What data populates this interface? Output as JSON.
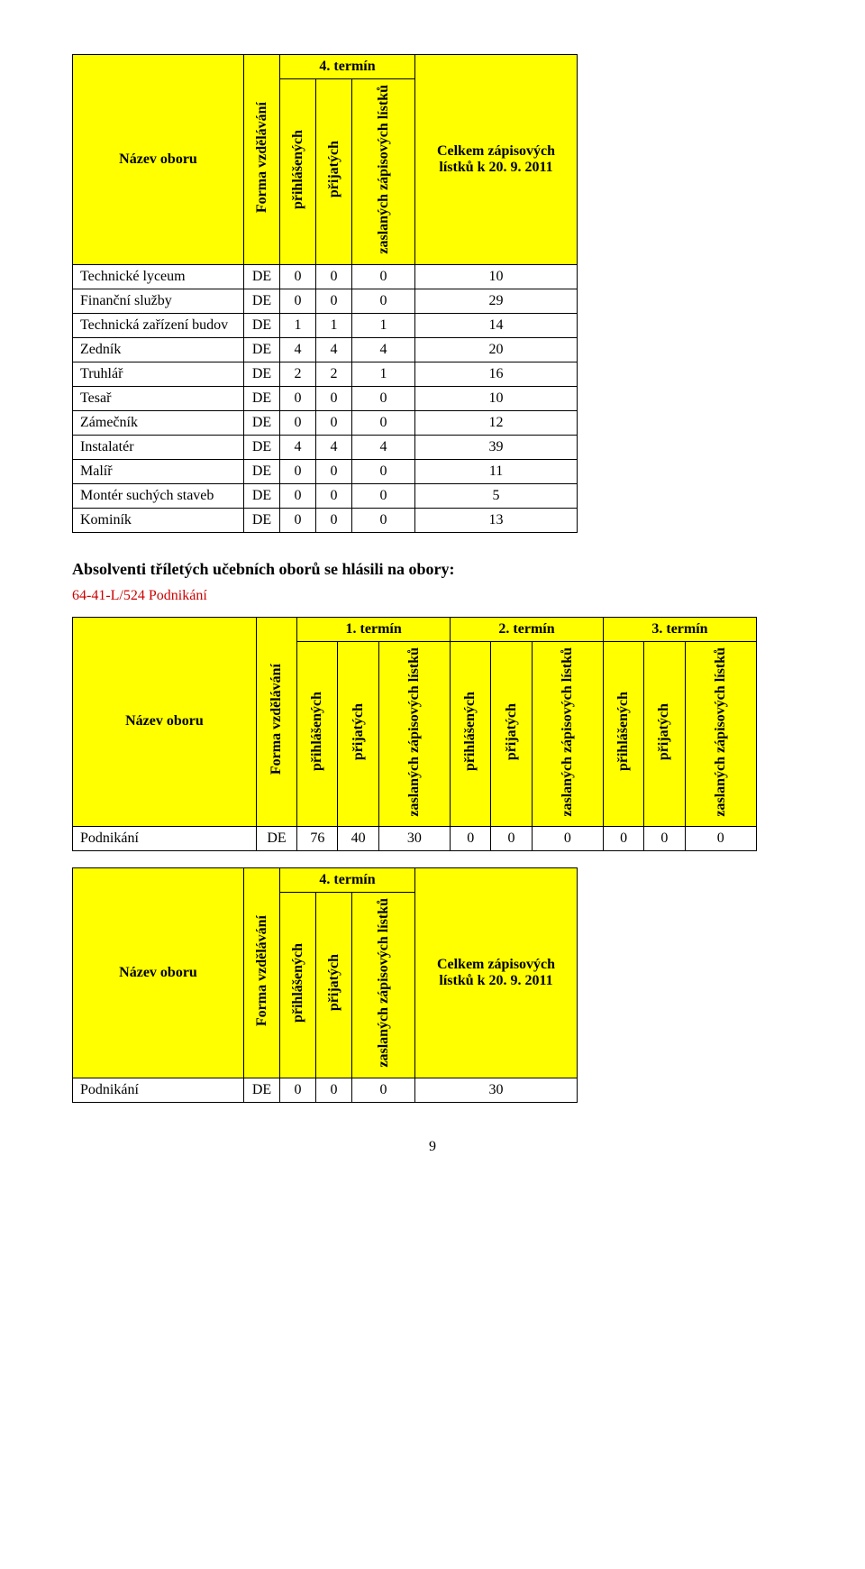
{
  "table1": {
    "col1_header": "Název oboru",
    "forma": "Forma vzdělávání",
    "termin4": "4. termín",
    "prihlasenych": "přihlášených",
    "prijatych": "přijatých",
    "zaslanych": "zaslaných zápisových lístků",
    "celkem": "Celkem zápisových lístků k 20. 9. 2011",
    "rows": [
      {
        "name": "Technické lyceum",
        "forma": "DE",
        "v1": "0",
        "v2": "0",
        "v3": "0",
        "total": "10"
      },
      {
        "name": "Finanční služby",
        "forma": "DE",
        "v1": "0",
        "v2": "0",
        "v3": "0",
        "total": "29"
      },
      {
        "name": "Technická zařízení budov",
        "forma": "DE",
        "v1": "1",
        "v2": "1",
        "v3": "1",
        "total": "14"
      },
      {
        "name": "Zedník",
        "forma": "DE",
        "v1": "4",
        "v2": "4",
        "v3": "4",
        "total": "20"
      },
      {
        "name": "Truhlář",
        "forma": "DE",
        "v1": "2",
        "v2": "2",
        "v3": "1",
        "total": "16"
      },
      {
        "name": "Tesař",
        "forma": "DE",
        "v1": "0",
        "v2": "0",
        "v3": "0",
        "total": "10"
      },
      {
        "name": "Zámečník",
        "forma": "DE",
        "v1": "0",
        "v2": "0",
        "v3": "0",
        "total": "12"
      },
      {
        "name": "Instalatér",
        "forma": "DE",
        "v1": "4",
        "v2": "4",
        "v3": "4",
        "total": "39"
      },
      {
        "name": "Malíř",
        "forma": "DE",
        "v1": "0",
        "v2": "0",
        "v3": "0",
        "total": "11"
      },
      {
        "name": "Montér suchých staveb",
        "forma": "DE",
        "v1": "0",
        "v2": "0",
        "v3": "0",
        "total": "5"
      },
      {
        "name": "Kominík",
        "forma": "DE",
        "v1": "0",
        "v2": "0",
        "v3": "0",
        "total": "13"
      }
    ]
  },
  "section_heading": "Absolventi tříletých učebních oborů se hlásili na obory:",
  "course_code": "64-41-L/524   Podnikání",
  "table2": {
    "col1_header": "Název oboru",
    "forma": "Forma vzdělávání",
    "termin1": "1. termín",
    "termin2": "2. termín",
    "termin3": "3. termín",
    "prihlasenych": "přihlášených",
    "prijatych": "přijatých",
    "zaslanych": "zaslaných zápisových lístků",
    "rows": [
      {
        "name": "Podnikání",
        "forma": "DE",
        "t1a": "76",
        "t1b": "40",
        "t1c": "30",
        "t2a": "0",
        "t2b": "0",
        "t2c": "0",
        "t3a": "0",
        "t3b": "0",
        "t3c": "0"
      }
    ]
  },
  "table3": {
    "col1_header": "Název oboru",
    "forma": "Forma vzdělávání",
    "termin4": "4. termín",
    "prihlasenych": "přihlášených",
    "prijatych": "přijatých",
    "zaslanych": "zaslaných zápisových lístků",
    "celkem": "Celkem zápisových lístků k 20. 9. 2011",
    "rows": [
      {
        "name": "Podnikání",
        "forma": "DE",
        "v1": "0",
        "v2": "0",
        "v3": "0",
        "total": "30"
      }
    ]
  },
  "page_number": "9"
}
